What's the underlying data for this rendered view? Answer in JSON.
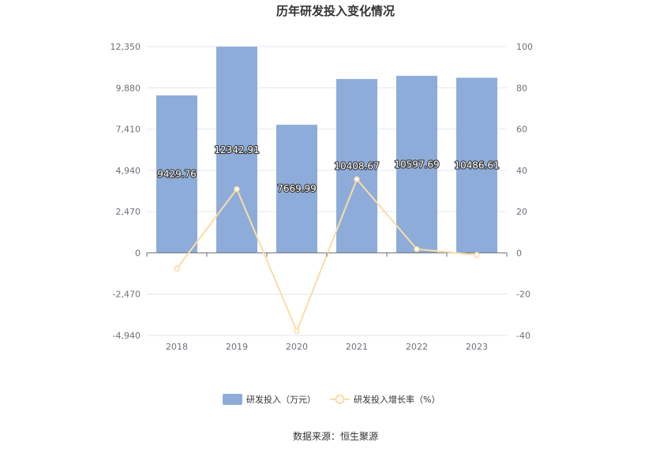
{
  "chart_data": {
    "type": "bar",
    "title": "历年研发投入变化情况",
    "categories": [
      "2018",
      "2019",
      "2020",
      "2021",
      "2022",
      "2023"
    ],
    "series": [
      {
        "name": "研发投入（万元）",
        "type": "bar",
        "axis": "left",
        "color": "#8eacd9",
        "values": [
          9429.76,
          12342.91,
          7669.99,
          10408.67,
          10597.69,
          10486.61
        ],
        "labels": [
          "9429.76",
          "12342.91",
          "7669.99",
          "10408.67",
          "10597.69",
          "10486.61"
        ]
      },
      {
        "name": "研发投入增长率（%）",
        "type": "line",
        "axis": "right",
        "color": "#fcdca4",
        "values": [
          -7.6,
          30.9,
          -37.9,
          35.7,
          1.8,
          -1.0
        ]
      }
    ],
    "y_left": {
      "ticks": [
        -4940,
        -2470,
        0,
        2470,
        4940,
        7410,
        9880,
        12350
      ],
      "tick_labels": [
        "-4,940",
        "-2,470",
        "0",
        "2,470",
        "4,940",
        "7,410",
        "9,880",
        "12,350"
      ],
      "range": [
        -4940,
        12350
      ]
    },
    "y_right": {
      "ticks": [
        -40,
        -20,
        0,
        20,
        40,
        60,
        80,
        100
      ],
      "tick_labels": [
        "-40",
        "-20",
        "0",
        "20",
        "40",
        "60",
        "80",
        "100"
      ],
      "range": [
        -40,
        100
      ]
    },
    "grid": true,
    "legend": "bottom-center"
  },
  "source_text": "数据来源：恒生聚源"
}
